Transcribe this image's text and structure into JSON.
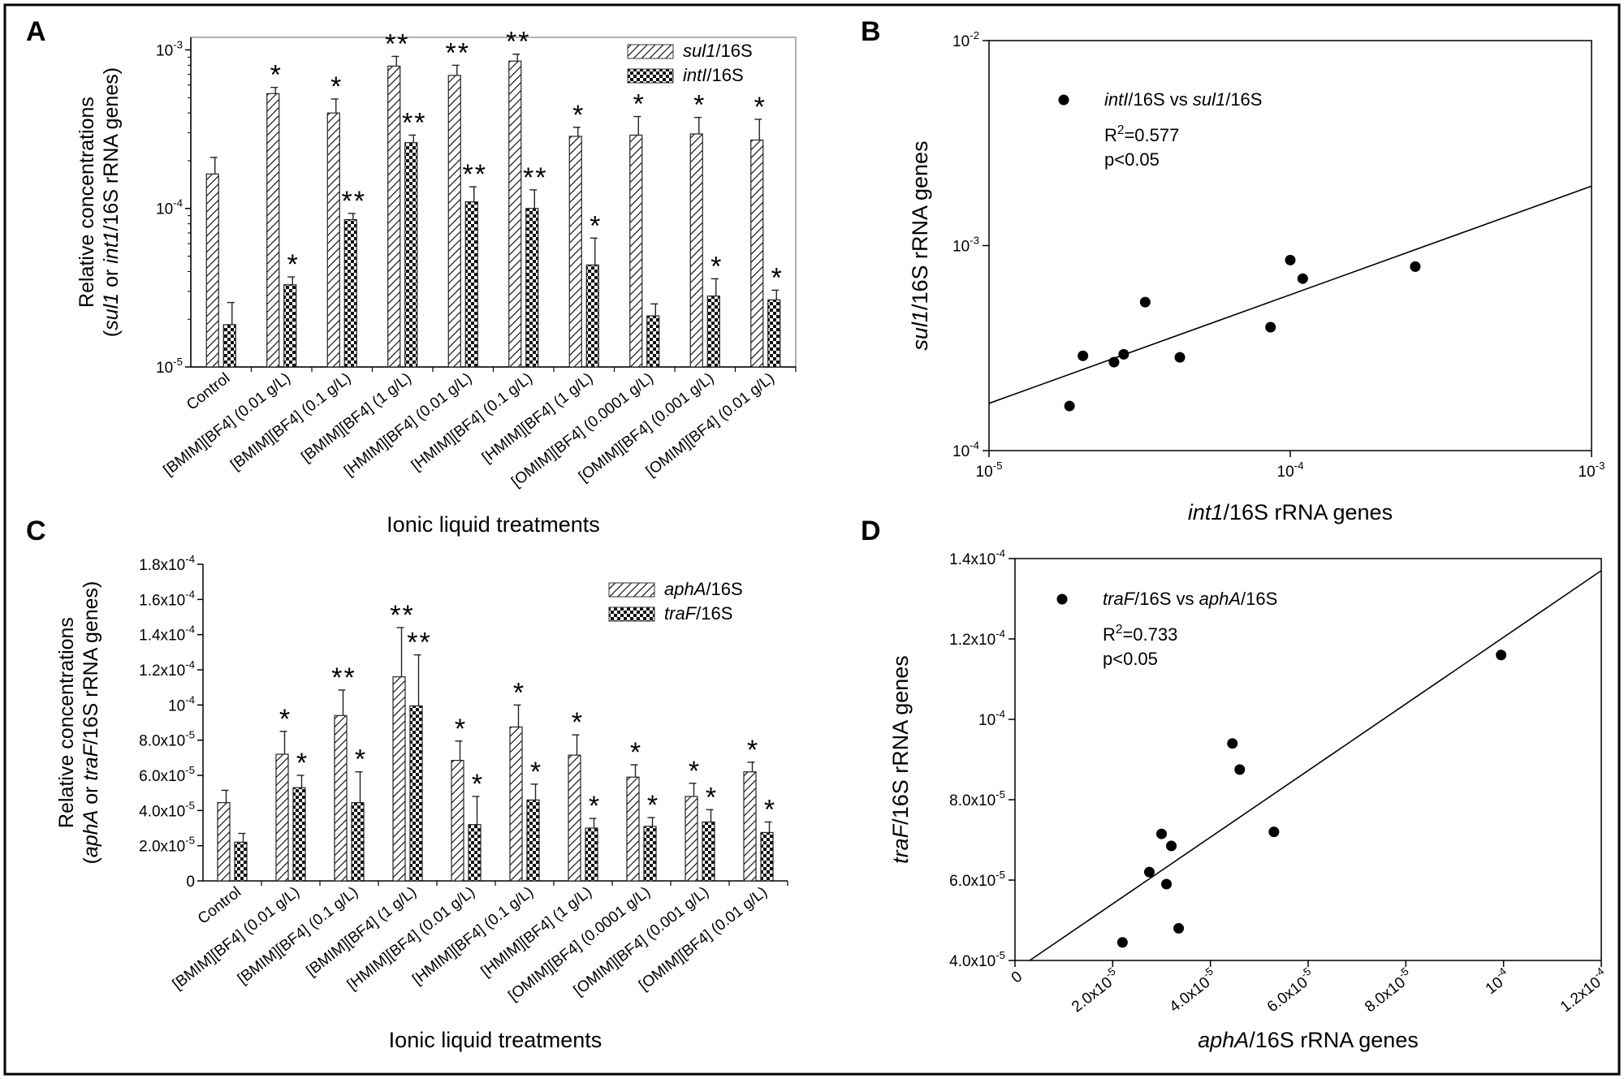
{
  "chart_data": [
    {
      "panel": "A",
      "type": "bar",
      "scale": "log",
      "ylim": [
        1e-05,
        0.0012
      ],
      "ytick_labels": [
        "10-5",
        "10-4",
        "10-3"
      ],
      "ytick_values": [
        1e-05,
        0.0001,
        0.001
      ],
      "ylabel": [
        "Relative concentrations",
        "(sul1 or int1/16S rRNA genes)"
      ],
      "xlabel": "Ionic liquid treatments",
      "categories": [
        "Control",
        "[BMIM][BF4] (0.01 g/L)",
        "[BMIM][BF4] (0.1 g/L)",
        "[BMIM][BF4] (1 g/L)",
        "[HMIM][BF4] (0.01 g/L)",
        "[HMIM][BF4] (0.1 g/L)",
        "[HMIM][BF4] (1 g/L)",
        "[OMIM][BF4] (0.0001 g/L)",
        "[OMIM][BF4] (0.001 g/L)",
        "[OMIM][BF4] (0.01 g/L)"
      ],
      "series": [
        {
          "name": "sul1",
          "legend_suffix": "/16S",
          "pattern": "hatch",
          "values": [
            0.000165,
            0.00053,
            0.0004,
            0.00079,
            0.00069,
            0.00085,
            0.000285,
            0.00029,
            0.000295,
            0.00027
          ],
          "errors": [
            4.5e-05,
            5e-05,
            9e-05,
            0.00012,
            0.00011,
            9e-05,
            4e-05,
            9e-05,
            8e-05,
            9.5e-05
          ],
          "marks": [
            "",
            "*",
            "*",
            "**",
            "**",
            "**",
            "*",
            "*",
            "*",
            "*"
          ]
        },
        {
          "name": "intI",
          "legend_suffix": "/16S",
          "pattern": "checker",
          "values": [
            1.85e-05,
            3.3e-05,
            8.5e-05,
            0.00026,
            0.00011,
            0.0001,
            4.4e-05,
            2.1e-05,
            2.8e-05,
            2.65e-05
          ],
          "errors": [
            7e-06,
            4e-06,
            8e-06,
            3e-05,
            2.7e-05,
            3.1e-05,
            2.1e-05,
            4e-06,
            8e-06,
            4e-06
          ],
          "marks": [
            "",
            "*",
            "**",
            "**",
            "**",
            "**",
            "*",
            "",
            "*",
            "*"
          ]
        }
      ]
    },
    {
      "panel": "B",
      "type": "scatter",
      "scale": "log",
      "xlim": [
        1e-05,
        0.001
      ],
      "ylim": [
        0.0001,
        0.01
      ],
      "xtick_labels": [
        "10-5",
        "10-4",
        "10-3"
      ],
      "xtick_values": [
        1e-05,
        0.0001,
        0.001
      ],
      "ytick_labels": [
        "10-4",
        "10-3",
        "10-2"
      ],
      "ytick_values": [
        0.0001,
        0.001,
        0.01
      ],
      "xlabel": "int1/16S rRNA genes",
      "ylabel": "sul1/16S rRNA genes",
      "legend": "intI/16S vs sul1/16S",
      "r2": "R2=0.577",
      "p": "p<0.05",
      "x": [
        1.85e-05,
        2.05e-05,
        2.6e-05,
        2.8e-05,
        3.3e-05,
        4.3e-05,
        8.6e-05,
        0.0001,
        0.00011,
        0.00026
      ],
      "y": [
        0.000165,
        0.00029,
        0.00027,
        0.000295,
        0.00053,
        0.000285,
        0.0004,
        0.00085,
        0.00069,
        0.00079
      ],
      "fit_line": {
        "x": [
          1e-05,
          0.001
        ],
        "y": [
          0.00017,
          0.00195
        ]
      }
    },
    {
      "panel": "C",
      "type": "bar",
      "scale": "linear",
      "ylim": [
        0,
        0.00018
      ],
      "ytick_labels": [
        "0",
        "2.0x10-5",
        "4.0x10-5",
        "6.0x10-5",
        "8.0x10-5",
        "10-4",
        "1.2x10-4",
        "1.4x10-4",
        "1.6x10-4",
        "1.8x10-4"
      ],
      "ytick_values": [
        0,
        2e-05,
        4e-05,
        6e-05,
        8e-05,
        0.0001,
        0.00012,
        0.00014,
        0.00016,
        0.00018
      ],
      "ylabel": [
        "Relative concentrations",
        "(aphA or traF/16S rRNA genes)"
      ],
      "xlabel": "Ionic liquid treatments",
      "categories": [
        "Control",
        "[BMIM][BF4] (0.01 g/L)",
        "[BMIM][BF4] (0.1 g/L)",
        "[BMIM][BF4] (1 g/L)",
        "[HMIM][BF4] (0.01 g/L)",
        "[HMIM][BF4] (0.1 g/L)",
        "[HMIM][BF4] (1 g/L)",
        "[OMIM][BF4] (0.0001 g/L)",
        "[OMIM][BF4] (0.001 g/L)",
        "[OMIM][BF4] (0.01 g/L)"
      ],
      "series": [
        {
          "name": "aphA",
          "legend_suffix": "/16S",
          "pattern": "hatch",
          "values": [
            4.45e-05,
            7.2e-05,
            9.4e-05,
            0.000116,
            6.85e-05,
            8.75e-05,
            7.15e-05,
            5.9e-05,
            4.8e-05,
            6.2e-05
          ],
          "errors": [
            7e-06,
            1.3e-05,
            1.45e-05,
            2.8e-05,
            1.1e-05,
            1.25e-05,
            1.15e-05,
            7e-06,
            7.5e-06,
            5.5e-06
          ],
          "marks": [
            "",
            "*",
            "**",
            "**",
            "*",
            "*",
            "*",
            "*",
            "*",
            "*"
          ]
        },
        {
          "name": "traF",
          "legend_suffix": "/16S",
          "pattern": "checker",
          "values": [
            2.2e-05,
            5.3e-05,
            4.45e-05,
            9.95e-05,
            3.2e-05,
            4.6e-05,
            3e-05,
            3.1e-05,
            3.35e-05,
            2.75e-05
          ],
          "errors": [
            5e-06,
            7e-06,
            1.75e-05,
            2.9e-05,
            1.6e-05,
            9e-06,
            5.5e-06,
            5e-06,
            7e-06,
            6e-06
          ],
          "marks": [
            "",
            "*",
            "*",
            "**",
            "*",
            "*",
            "*",
            "*",
            "*",
            "*"
          ]
        }
      ]
    },
    {
      "panel": "D",
      "type": "scatter",
      "scale": "linear",
      "xlim": [
        0,
        0.00012
      ],
      "ylim": [
        4e-05,
        0.00014
      ],
      "xtick_labels": [
        "0",
        "2.0x10-5",
        "4.0x10-5",
        "6.0x10-5",
        "8.0x10-5",
        "10-4",
        "1.2x10-4"
      ],
      "xtick_values": [
        0,
        2e-05,
        4e-05,
        6e-05,
        8e-05,
        0.0001,
        0.00012
      ],
      "ytick_labels": [
        "4.0x10-5",
        "6.0x10-5",
        "8.0x10-5",
        "10-4",
        "1.2x10-4",
        "1.4x10-4"
      ],
      "ytick_values": [
        4e-05,
        6e-05,
        8e-05,
        0.0001,
        0.00012,
        0.00014
      ],
      "xlabel": "aphA/16S rRNA genes",
      "ylabel": "traF/16S rRNA genes",
      "legend": "traF/16S vs aphA/16S",
      "r2": "R2=0.733",
      "p": "p<0.05",
      "x": [
        2.2e-05,
        2.75e-05,
        3e-05,
        3.1e-05,
        3.2e-05,
        3.35e-05,
        4.45e-05,
        4.6e-05,
        5.3e-05,
        9.95e-05
      ],
      "y": [
        4.45e-05,
        6.2e-05,
        7.15e-05,
        5.9e-05,
        6.85e-05,
        4.8e-05,
        9.4e-05,
        8.75e-05,
        7.2e-05,
        0.000116
      ],
      "fit_line": {
        "x": [
          3e-06,
          0.00012
        ],
        "y": [
          4e-05,
          0.000137
        ]
      }
    }
  ]
}
